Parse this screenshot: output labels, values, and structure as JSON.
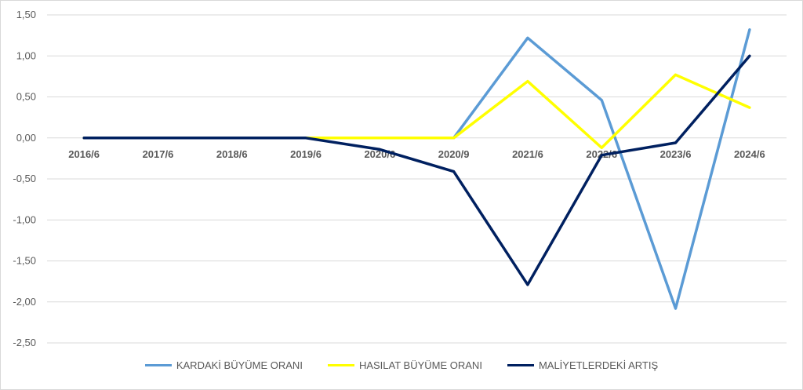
{
  "chart_data": {
    "type": "line",
    "categories": [
      "2016/6",
      "2017/6",
      "2018/6",
      "2019/6",
      "2020/6",
      "2020/9",
      "2021/6",
      "2022/6",
      "2023/6",
      "2024/6"
    ],
    "series": [
      {
        "name": "KARDAKİ BÜYÜME ORANI",
        "color": "#5b9bd5",
        "values": [
          0,
          0,
          0,
          0,
          0,
          0,
          1.22,
          0.46,
          -2.08,
          1.32
        ]
      },
      {
        "name": "HASILAT BÜYÜME ORANI",
        "color": "#ffff00",
        "values": [
          0,
          0,
          0,
          0,
          0,
          0,
          0.69,
          -0.12,
          0.77,
          0.37
        ]
      },
      {
        "name": "MALİYETLERDEKİ ARTIŞ",
        "color": "#002060",
        "values": [
          0,
          0,
          0,
          0,
          -0.14,
          -0.41,
          -1.79,
          -0.21,
          -0.06,
          1.0
        ]
      }
    ],
    "yticks": [
      "1,50",
      "1,00",
      "0,50",
      "0,00",
      "-0,50",
      "-1,00",
      "-1,50",
      "-2,00",
      "-2,50"
    ],
    "ylim": [
      -2.5,
      1.5
    ],
    "grid": true,
    "legend": "bottom"
  }
}
